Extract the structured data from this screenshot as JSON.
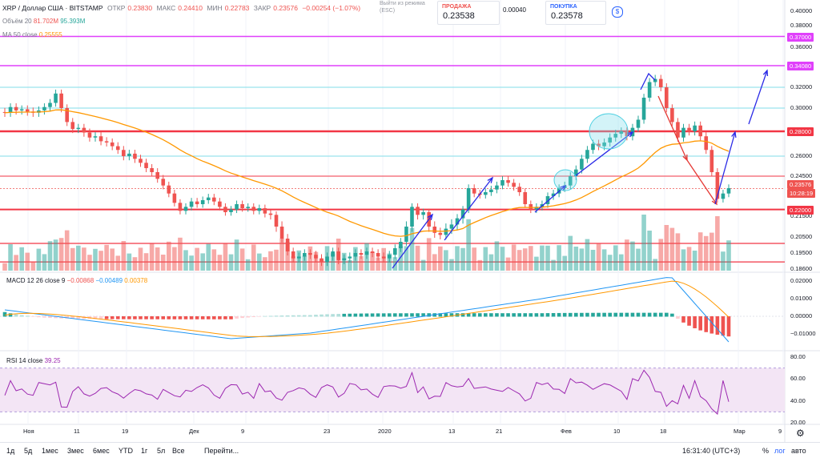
{
  "header": {
    "symbol": "XRP / Доллар США · BITSTAMP",
    "open_label": "ОТКР",
    "open": "0.23830",
    "high_label": "МАКС",
    "high": "0.24410",
    "low_label": "МИН",
    "low": "0.22783",
    "close_label": "ЗАКР",
    "close": "0.23576",
    "change": "−0.00254 (−1.07%)",
    "volume_label": "Объём 20",
    "volume_a": "81.702M",
    "volume_b": "95.393M",
    "ma_label": "MA 50 close",
    "ma_value": "0.25555",
    "popup_line1": "Выйти из режима",
    "popup_line2": "(ESC)"
  },
  "trade": {
    "sell_label": "ПРОДАЖА",
    "sell_price": "0.23538",
    "spread": "0.00040",
    "buy_label": "ПОКУПКА",
    "buy_price": "0.23578"
  },
  "macd": {
    "label": "MACD 12 26 close 9",
    "v1": "−0.00868",
    "v2": "−0.00489",
    "v3": "0.00378"
  },
  "rsi": {
    "label": "RSI 14 close",
    "value": "39.25"
  },
  "price_tags": [
    {
      "text": "0.37000",
      "color": "#e040fb"
    },
    {
      "text": "0.34080",
      "color": "#e040fb"
    },
    {
      "text": "0.28000",
      "color": "#f23645"
    },
    {
      "text": "0.23576",
      "color": "#ef5350"
    },
    {
      "text": "10:28:19",
      "color": "#ef5350"
    },
    {
      "text": "0.22000",
      "color": "#f23645"
    }
  ],
  "price_axis": [
    "0.40000",
    "0.38000",
    "0.36000",
    "0.34000",
    "0.32000",
    "0.30000",
    "0.28000",
    "0.26000",
    "0.24500",
    "0.23000",
    "0.21500",
    "0.20500",
    "0.19500",
    "0.18600"
  ],
  "macd_axis": [
    "0.02000",
    "0.01000",
    "0.00000",
    "−0.01000"
  ],
  "rsi_axis": [
    "80.00",
    "60.00",
    "40.00",
    "20.00"
  ],
  "x_axis": [
    "Ноя",
    "11",
    "19",
    "Дек",
    "9",
    "23",
    "2020",
    "13",
    "21",
    "Фев",
    "10",
    "18",
    "Мар",
    "9"
  ],
  "bottom": {
    "timeframes": [
      "1д",
      "5д",
      "1мес",
      "3мес",
      "6мес",
      "YTD",
      "1г",
      "5л",
      "Все"
    ],
    "goto": "Перейти...",
    "clock": "16:31:40 (UTC+3)",
    "percent": "%",
    "log": "лог",
    "auto": "авто"
  },
  "colors": {
    "up": "#26a69a",
    "down": "#ef5350",
    "ma": "#ff9800",
    "magenta": "#e040fb",
    "red_level": "#f23645",
    "cyan_level": "#80deea",
    "trend": "#2a2ae6",
    "rsi_fill": "#f3e5f5",
    "rsi_line": "#9c27b0"
  },
  "chart_data": {
    "type": "candlestick",
    "title": "XRP / Доллар США · BITSTAMP",
    "x": [
      "Ноя",
      "11",
      "19",
      "Дек",
      "9",
      "23",
      "2020",
      "13",
      "21",
      "Фев",
      "10",
      "18",
      "Мар",
      "9"
    ],
    "price_ylim": [
      0.186,
      0.4
    ],
    "horizontal_levels": [
      0.37,
      0.3408,
      0.32,
      0.3,
      0.28,
      0.26,
      0.245,
      0.22,
      0.201
    ],
    "candles_close_approx": [
      0.296,
      0.301,
      0.298,
      0.299,
      0.297,
      0.296,
      0.298,
      0.301,
      0.305,
      0.314,
      0.3,
      0.288,
      0.282,
      0.283,
      0.279,
      0.275,
      0.276,
      0.272,
      0.271,
      0.268,
      0.265,
      0.26,
      0.262,
      0.258,
      0.255,
      0.251,
      0.248,
      0.243,
      0.238,
      0.232,
      0.225,
      0.219,
      0.222,
      0.226,
      0.224,
      0.227,
      0.229,
      0.226,
      0.222,
      0.218,
      0.22,
      0.224,
      0.221,
      0.222,
      0.219,
      0.221,
      0.217,
      0.216,
      0.21,
      0.204,
      0.196,
      0.192,
      0.193,
      0.195,
      0.194,
      0.192,
      0.19,
      0.193,
      0.196,
      0.191,
      0.192,
      0.193,
      0.195,
      0.194,
      0.196,
      0.195,
      0.193,
      0.192,
      0.194,
      0.198,
      0.202,
      0.21,
      0.222,
      0.216,
      0.218,
      0.21,
      0.207,
      0.206,
      0.209,
      0.211,
      0.214,
      0.22,
      0.236,
      0.232,
      0.231,
      0.233,
      0.235,
      0.238,
      0.242,
      0.24,
      0.237,
      0.233,
      0.224,
      0.22,
      0.222,
      0.224,
      0.23,
      0.232,
      0.236,
      0.238,
      0.245,
      0.25,
      0.258,
      0.265,
      0.27,
      0.268,
      0.271,
      0.275,
      0.278,
      0.28,
      0.276,
      0.283,
      0.29,
      0.31,
      0.325,
      0.328,
      0.32,
      0.3,
      0.288,
      0.275,
      0.283,
      0.28,
      0.285,
      0.276,
      0.265,
      0.248,
      0.228,
      0.232,
      0.236
    ],
    "ma50_note": "MA 50 close",
    "macd_ylim": [
      -0.012,
      0.022
    ],
    "rsi_ylim": [
      20,
      80
    ],
    "rsi_levels": [
      30,
      70
    ]
  }
}
